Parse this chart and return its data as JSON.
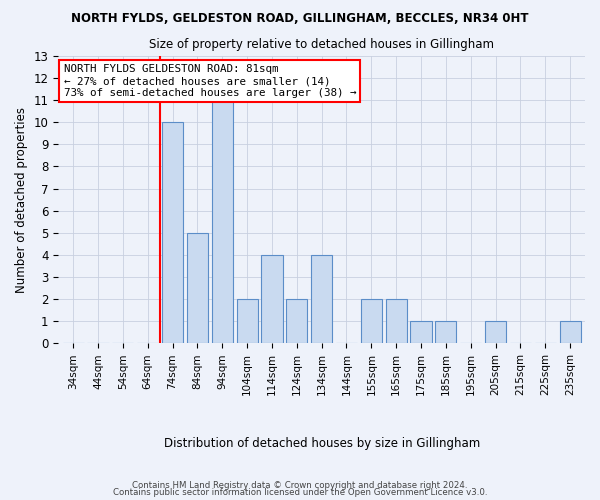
{
  "title": "NORTH FYLDS, GELDESTON ROAD, GILLINGHAM, BECCLES, NR34 0HT",
  "subtitle": "Size of property relative to detached houses in Gillingham",
  "xlabel": "Distribution of detached houses by size in Gillingham",
  "ylabel": "Number of detached properties",
  "categories": [
    "34sqm",
    "44sqm",
    "54sqm",
    "64sqm",
    "74sqm",
    "84sqm",
    "94sqm",
    "104sqm",
    "114sqm",
    "124sqm",
    "134sqm",
    "144sqm",
    "155sqm",
    "165sqm",
    "175sqm",
    "185sqm",
    "195sqm",
    "205sqm",
    "215sqm",
    "225sqm",
    "235sqm"
  ],
  "values": [
    0,
    0,
    0,
    0,
    10,
    5,
    11,
    2,
    4,
    2,
    4,
    0,
    2,
    2,
    1,
    1,
    0,
    1,
    0,
    0,
    1
  ],
  "bar_color": "#c9daf0",
  "bar_edge_color": "#5b8dc8",
  "red_line_index": 4,
  "ylim": [
    0,
    13
  ],
  "yticks": [
    0,
    1,
    2,
    3,
    4,
    5,
    6,
    7,
    8,
    9,
    10,
    11,
    12,
    13
  ],
  "annotation_title": "NORTH FYLDS GELDESTON ROAD: 81sqm",
  "annotation_line1": "← 27% of detached houses are smaller (14)",
  "annotation_line2": "73% of semi-detached houses are larger (38) →",
  "footer1": "Contains HM Land Registry data © Crown copyright and database right 2024.",
  "footer2": "Contains public sector information licensed under the Open Government Licence v3.0.",
  "background_color": "#eef2fa",
  "grid_color": "#c8d0e0"
}
